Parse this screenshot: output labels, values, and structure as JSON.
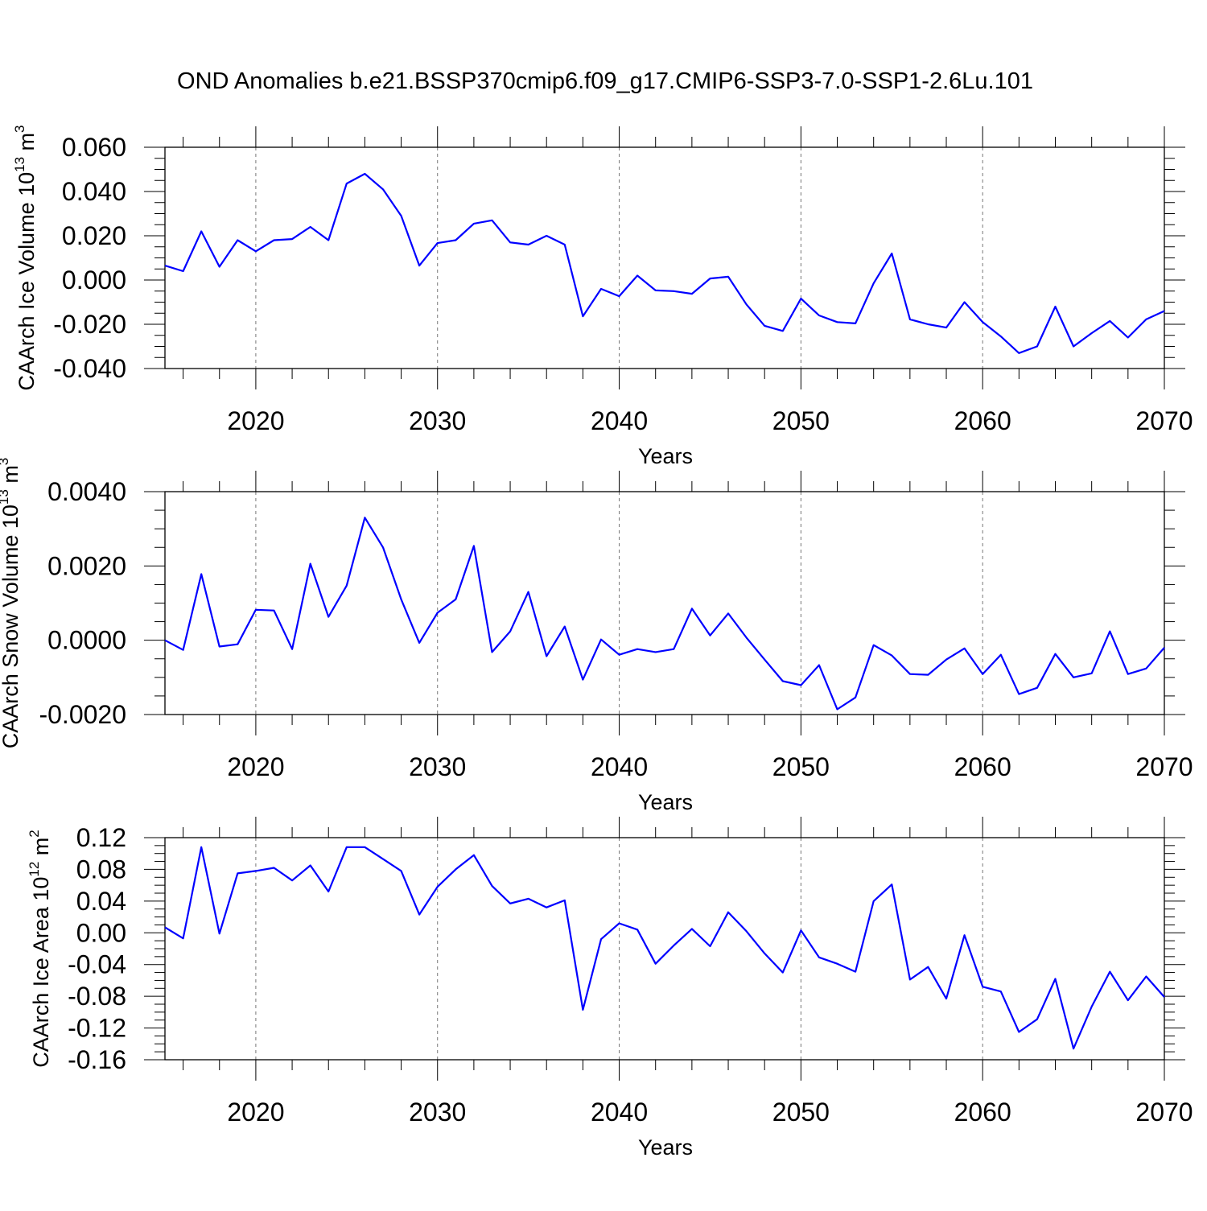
{
  "title": "OND Anomalies b.e21.BSSP370cmip6.f09_g17.CMIP6-SSP3-7.0-SSP1-2.6Lu.101",
  "line_color": "#0000ff",
  "chart_data": [
    {
      "type": "line",
      "xlabel": "Years",
      "ylabel": "CAArch Ice Volume 10",
      "ylabel_exp": "13",
      "ylabel_unit": " m",
      "ylabel_unit_exp": "3",
      "xlim": [
        2015,
        2070
      ],
      "ylim": [
        -0.04,
        0.06
      ],
      "x_ticks": [
        "2020",
        "2030",
        "2040",
        "2050",
        "2060",
        "2070"
      ],
      "y_ticks": [
        "-0.040",
        "-0.020",
        "0.000",
        "0.020",
        "0.040",
        "0.060"
      ],
      "y_tick_values": [
        -0.04,
        -0.02,
        0,
        0.02,
        0.04,
        0.06
      ],
      "y_minor_step": 0.005,
      "grid": "dashed vertical at major x ticks",
      "x_start": 2015,
      "values": [
        0.0065,
        0.004,
        0.022,
        0.006,
        0.018,
        0.013,
        0.018,
        0.0185,
        0.024,
        0.018,
        0.0436,
        0.048,
        0.041,
        0.029,
        0.0065,
        0.0167,
        0.018,
        0.0255,
        0.027,
        0.017,
        0.016,
        0.02,
        0.016,
        -0.0164,
        -0.004,
        -0.0073,
        0.002,
        -0.0047,
        -0.005,
        -0.0062,
        0.0007,
        0.0015,
        -0.011,
        -0.0207,
        -0.023,
        -0.0084,
        -0.016,
        -0.019,
        -0.0196,
        -0.0015,
        0.012,
        -0.0178,
        -0.02,
        -0.0215,
        -0.01,
        -0.019,
        -0.0255,
        -0.033,
        -0.03,
        -0.012,
        -0.03,
        -0.024,
        -0.0185,
        -0.026,
        -0.0178,
        -0.014
      ]
    },
    {
      "type": "line",
      "xlabel": "Years",
      "ylabel": "CAArch Snow Volume 10",
      "ylabel_exp": "13",
      "ylabel_unit": " m",
      "ylabel_unit_exp": "3",
      "xlim": [
        2015,
        2070
      ],
      "ylim": [
        -0.002,
        0.004
      ],
      "x_ticks": [
        "2020",
        "2030",
        "2040",
        "2050",
        "2060",
        "2070"
      ],
      "y_ticks": [
        "-0.0020",
        "0.0000",
        "0.0020",
        "0.0040"
      ],
      "y_tick_values": [
        -0.002,
        0,
        0.002,
        0.004
      ],
      "y_minor_step": 0.0005,
      "grid": "dashed vertical at major x ticks",
      "x_start": 2015,
      "values": [
        0.0,
        -0.00026,
        0.00178,
        -0.00017,
        -0.00011,
        0.00082,
        0.0008,
        -0.00024,
        0.00206,
        0.00063,
        0.00147,
        0.0033,
        0.0025,
        0.0011,
        -7e-05,
        0.00074,
        0.0011,
        0.00254,
        -0.00032,
        0.00024,
        0.0013,
        -0.00043,
        0.00037,
        -0.00106,
        2e-05,
        -0.00039,
        -0.00024,
        -0.00032,
        -0.00024,
        0.00085,
        0.00013,
        0.00072,
        7e-05,
        -0.00052,
        -0.0011,
        -0.00121,
        -0.00067,
        -0.00186,
        -0.00154,
        -0.00013,
        -0.00041,
        -0.00091,
        -0.00093,
        -0.00052,
        -0.00022,
        -0.00091,
        -0.00039,
        -0.00145,
        -0.00128,
        -0.00037,
        -0.001,
        -0.00089,
        0.00024,
        -0.00091,
        -0.00076,
        -0.0002
      ]
    },
    {
      "type": "line",
      "xlabel": "Years",
      "ylabel": "CAArch Ice Area 10",
      "ylabel_exp": "12",
      "ylabel_unit": " m",
      "ylabel_unit_exp": "2",
      "xlim": [
        2015,
        2070
      ],
      "ylim": [
        -0.16,
        0.12
      ],
      "x_ticks": [
        "2020",
        "2030",
        "2040",
        "2050",
        "2060",
        "2070"
      ],
      "y_ticks": [
        "-0.16",
        "-0.12",
        "-0.08",
        "-0.04",
        "0.00",
        "0.04",
        "0.08",
        "0.12"
      ],
      "y_tick_values": [
        -0.16,
        -0.12,
        -0.08,
        -0.04,
        0,
        0.04,
        0.08,
        0.12
      ],
      "y_minor_step": 0.01,
      "grid": "dashed vertical at major x ticks",
      "x_start": 2015,
      "values": [
        0.007,
        -0.007,
        0.108,
        -0.001,
        0.075,
        0.078,
        0.082,
        0.066,
        0.085,
        0.052,
        0.108,
        0.108,
        0.093,
        0.078,
        0.023,
        0.058,
        0.08,
        0.098,
        0.059,
        0.037,
        0.043,
        0.032,
        0.041,
        -0.097,
        -0.008,
        0.012,
        0.004,
        -0.039,
        -0.016,
        0.005,
        -0.017,
        0.026,
        0.002,
        -0.026,
        -0.05,
        0.003,
        -0.031,
        -0.039,
        -0.049,
        0.04,
        0.061,
        -0.059,
        -0.043,
        -0.083,
        -0.003,
        -0.068,
        -0.074,
        -0.125,
        -0.109,
        -0.058,
        -0.146,
        -0.093,
        -0.049,
        -0.085,
        -0.055,
        -0.081
      ]
    }
  ]
}
